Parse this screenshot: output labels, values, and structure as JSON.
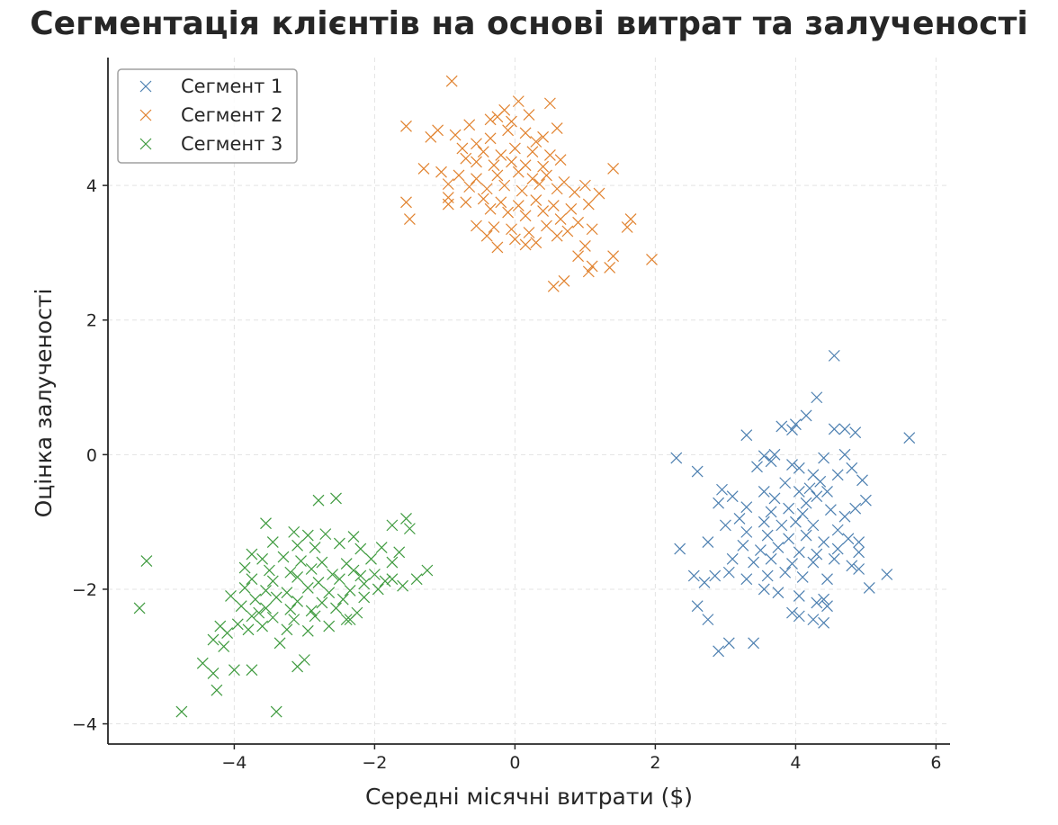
{
  "chart_data": {
    "type": "scatter",
    "title": "Сегментація клієнтів на основі витрат та залученості",
    "xlabel": "Середні місячні витрати ($)",
    "ylabel": "Оцінка залученості",
    "xlim": [
      -5.8,
      6.2
    ],
    "ylim": [
      -4.3,
      5.9
    ],
    "xticks": [
      -4,
      -2,
      0,
      2,
      4,
      6
    ],
    "xtick_labels": [
      "−4",
      "−2",
      "0",
      "2",
      "4",
      "6"
    ],
    "yticks": [
      -4,
      -2,
      0,
      2,
      4
    ],
    "ytick_labels": [
      "−4",
      "−2",
      "0",
      "2",
      "4"
    ],
    "grid": true,
    "legend_position": "top-left",
    "marker": "x",
    "series": [
      {
        "name": "Сегмент 1",
        "color": "#4c7fb0",
        "points": [
          [
            4.55,
            1.47
          ],
          [
            5.62,
            0.25
          ],
          [
            4.3,
            0.85
          ],
          [
            4.15,
            0.58
          ],
          [
            3.3,
            0.29
          ],
          [
            3.8,
            0.42
          ],
          [
            3.95,
            0.37
          ],
          [
            4.55,
            0.38
          ],
          [
            4.7,
            0.38
          ],
          [
            4.85,
            0.33
          ],
          [
            4.0,
            0.45
          ],
          [
            2.3,
            -0.05
          ],
          [
            2.6,
            -0.25
          ],
          [
            3.7,
            0.0
          ],
          [
            3.55,
            -0.02
          ],
          [
            3.95,
            -0.15
          ],
          [
            4.4,
            -0.05
          ],
          [
            4.7,
            0.0
          ],
          [
            3.45,
            -0.18
          ],
          [
            3.65,
            -0.1
          ],
          [
            4.25,
            -0.3
          ],
          [
            4.05,
            -0.2
          ],
          [
            4.6,
            -0.3
          ],
          [
            4.8,
            -0.2
          ],
          [
            4.95,
            -0.38
          ],
          [
            3.85,
            -0.42
          ],
          [
            4.35,
            -0.4
          ],
          [
            4.2,
            -0.5
          ],
          [
            2.95,
            -0.52
          ],
          [
            3.1,
            -0.62
          ],
          [
            3.55,
            -0.55
          ],
          [
            3.7,
            -0.65
          ],
          [
            4.05,
            -0.55
          ],
          [
            4.3,
            -0.62
          ],
          [
            4.15,
            -0.72
          ],
          [
            4.45,
            -0.55
          ],
          [
            5.0,
            -0.68
          ],
          [
            2.9,
            -0.72
          ],
          [
            3.3,
            -0.78
          ],
          [
            3.65,
            -0.85
          ],
          [
            3.9,
            -0.8
          ],
          [
            4.1,
            -0.88
          ],
          [
            4.5,
            -0.82
          ],
          [
            4.7,
            -0.92
          ],
          [
            4.85,
            -0.8
          ],
          [
            3.2,
            -0.95
          ],
          [
            3.55,
            -1.0
          ],
          [
            3.8,
            -1.05
          ],
          [
            4.0,
            -1.0
          ],
          [
            4.25,
            -1.05
          ],
          [
            4.6,
            -1.12
          ],
          [
            3.0,
            -1.05
          ],
          [
            3.3,
            -1.15
          ],
          [
            3.6,
            -1.2
          ],
          [
            3.9,
            -1.25
          ],
          [
            4.15,
            -1.2
          ],
          [
            4.4,
            -1.3
          ],
          [
            4.75,
            -1.25
          ],
          [
            4.9,
            -1.3
          ],
          [
            2.75,
            -1.3
          ],
          [
            3.25,
            -1.35
          ],
          [
            3.5,
            -1.42
          ],
          [
            3.75,
            -1.38
          ],
          [
            4.05,
            -1.45
          ],
          [
            4.3,
            -1.48
          ],
          [
            4.6,
            -1.4
          ],
          [
            4.9,
            -1.45
          ],
          [
            2.35,
            -1.4
          ],
          [
            3.1,
            -1.55
          ],
          [
            3.4,
            -1.6
          ],
          [
            3.65,
            -1.55
          ],
          [
            3.95,
            -1.62
          ],
          [
            4.25,
            -1.6
          ],
          [
            4.55,
            -1.55
          ],
          [
            4.8,
            -1.65
          ],
          [
            2.55,
            -1.8
          ],
          [
            2.85,
            -1.8
          ],
          [
            3.05,
            -1.75
          ],
          [
            3.3,
            -1.85
          ],
          [
            3.6,
            -1.8
          ],
          [
            3.85,
            -1.75
          ],
          [
            4.1,
            -1.82
          ],
          [
            4.45,
            -1.85
          ],
          [
            4.9,
            -1.7
          ],
          [
            5.3,
            -1.78
          ],
          [
            2.7,
            -1.9
          ],
          [
            3.55,
            -2.0
          ],
          [
            3.75,
            -2.05
          ],
          [
            4.05,
            -2.1
          ],
          [
            4.4,
            -2.15
          ],
          [
            5.05,
            -1.98
          ],
          [
            4.3,
            -2.2
          ],
          [
            4.45,
            -2.25
          ],
          [
            2.6,
            -2.25
          ],
          [
            3.95,
            -2.35
          ],
          [
            4.05,
            -2.4
          ],
          [
            4.25,
            -2.45
          ],
          [
            2.75,
            -2.45
          ],
          [
            4.4,
            -2.5
          ],
          [
            3.05,
            -2.8
          ],
          [
            3.4,
            -2.8
          ],
          [
            2.9,
            -2.92
          ]
        ]
      },
      {
        "name": "Сегмент 2",
        "color": "#e1822e",
        "points": [
          [
            -0.9,
            5.55
          ],
          [
            0.5,
            5.22
          ],
          [
            0.05,
            5.25
          ],
          [
            -0.15,
            5.12
          ],
          [
            -0.25,
            5.02
          ],
          [
            -0.35,
            4.98
          ],
          [
            0.2,
            5.05
          ],
          [
            -0.65,
            4.9
          ],
          [
            -0.05,
            4.95
          ],
          [
            0.6,
            4.85
          ],
          [
            -1.55,
            4.88
          ],
          [
            -1.1,
            4.82
          ],
          [
            -0.85,
            4.75
          ],
          [
            -0.55,
            4.62
          ],
          [
            -0.35,
            4.7
          ],
          [
            -0.1,
            4.82
          ],
          [
            0.15,
            4.78
          ],
          [
            0.3,
            4.65
          ],
          [
            0.4,
            4.72
          ],
          [
            -1.2,
            4.72
          ],
          [
            -0.75,
            4.55
          ],
          [
            -0.45,
            4.5
          ],
          [
            -0.2,
            4.45
          ],
          [
            0.0,
            4.55
          ],
          [
            0.25,
            4.5
          ],
          [
            0.5,
            4.45
          ],
          [
            -0.7,
            4.4
          ],
          [
            -0.55,
            4.35
          ],
          [
            -0.3,
            4.3
          ],
          [
            -0.05,
            4.35
          ],
          [
            0.15,
            4.3
          ],
          [
            0.4,
            4.28
          ],
          [
            0.65,
            4.38
          ],
          [
            -1.3,
            4.25
          ],
          [
            -1.05,
            4.2
          ],
          [
            -0.8,
            4.15
          ],
          [
            -0.55,
            4.1
          ],
          [
            -0.25,
            4.15
          ],
          [
            0.05,
            4.2
          ],
          [
            0.25,
            4.1
          ],
          [
            0.45,
            4.15
          ],
          [
            0.7,
            4.05
          ],
          [
            1.0,
            4.0
          ],
          [
            1.4,
            4.25
          ],
          [
            -0.95,
            4.02
          ],
          [
            -0.65,
            3.98
          ],
          [
            -0.4,
            3.95
          ],
          [
            -0.15,
            4.0
          ],
          [
            0.1,
            3.92
          ],
          [
            0.35,
            4.02
          ],
          [
            0.6,
            3.95
          ],
          [
            0.85,
            3.9
          ],
          [
            1.2,
            3.88
          ],
          [
            -0.95,
            3.82
          ],
          [
            -0.7,
            3.75
          ],
          [
            -0.45,
            3.8
          ],
          [
            -0.2,
            3.75
          ],
          [
            0.05,
            3.7
          ],
          [
            0.3,
            3.78
          ],
          [
            0.55,
            3.7
          ],
          [
            0.8,
            3.65
          ],
          [
            1.05,
            3.72
          ],
          [
            -1.55,
            3.75
          ],
          [
            -0.95,
            3.72
          ],
          [
            -0.35,
            3.65
          ],
          [
            -0.1,
            3.6
          ],
          [
            0.15,
            3.55
          ],
          [
            0.4,
            3.62
          ],
          [
            0.65,
            3.5
          ],
          [
            0.9,
            3.45
          ],
          [
            -1.5,
            3.5
          ],
          [
            -0.55,
            3.4
          ],
          [
            -0.3,
            3.38
          ],
          [
            -0.05,
            3.35
          ],
          [
            0.2,
            3.3
          ],
          [
            0.45,
            3.4
          ],
          [
            0.75,
            3.32
          ],
          [
            1.1,
            3.35
          ],
          [
            1.6,
            3.38
          ],
          [
            1.65,
            3.5
          ],
          [
            -0.4,
            3.25
          ],
          [
            0.0,
            3.2
          ],
          [
            0.3,
            3.15
          ],
          [
            0.6,
            3.25
          ],
          [
            1.0,
            3.1
          ],
          [
            -0.25,
            3.08
          ],
          [
            0.15,
            3.12
          ],
          [
            1.4,
            2.95
          ],
          [
            1.95,
            2.9
          ],
          [
            0.9,
            2.95
          ],
          [
            1.1,
            2.8
          ],
          [
            1.05,
            2.72
          ],
          [
            1.35,
            2.78
          ],
          [
            0.7,
            2.58
          ],
          [
            0.55,
            2.5
          ]
        ]
      },
      {
        "name": "Сегмент 3",
        "color": "#3e9a3e",
        "points": [
          [
            -2.55,
            -0.65
          ],
          [
            -2.8,
            -0.68
          ],
          [
            -1.55,
            -0.95
          ],
          [
            -1.5,
            -1.1
          ],
          [
            -1.75,
            -1.05
          ],
          [
            -3.55,
            -1.02
          ],
          [
            -3.15,
            -1.15
          ],
          [
            -2.95,
            -1.2
          ],
          [
            -2.7,
            -1.18
          ],
          [
            -2.3,
            -1.22
          ],
          [
            -3.45,
            -1.3
          ],
          [
            -3.1,
            -1.35
          ],
          [
            -2.85,
            -1.38
          ],
          [
            -2.5,
            -1.32
          ],
          [
            -2.2,
            -1.4
          ],
          [
            -1.9,
            -1.38
          ],
          [
            -1.65,
            -1.45
          ],
          [
            -3.75,
            -1.48
          ],
          [
            -3.6,
            -1.55
          ],
          [
            -3.3,
            -1.52
          ],
          [
            -3.05,
            -1.58
          ],
          [
            -2.75,
            -1.6
          ],
          [
            -2.4,
            -1.62
          ],
          [
            -2.05,
            -1.55
          ],
          [
            -1.75,
            -1.6
          ],
          [
            -3.85,
            -1.68
          ],
          [
            -3.5,
            -1.72
          ],
          [
            -3.2,
            -1.75
          ],
          [
            -2.9,
            -1.7
          ],
          [
            -2.6,
            -1.78
          ],
          [
            -2.3,
            -1.72
          ],
          [
            -2.0,
            -1.78
          ],
          [
            -1.25,
            -1.72
          ],
          [
            -3.75,
            -1.85
          ],
          [
            -3.45,
            -1.88
          ],
          [
            -3.1,
            -1.82
          ],
          [
            -2.8,
            -1.9
          ],
          [
            -2.5,
            -1.85
          ],
          [
            -2.15,
            -1.92
          ],
          [
            -1.85,
            -1.88
          ],
          [
            -1.4,
            -1.85
          ],
          [
            -3.85,
            -1.98
          ],
          [
            -3.55,
            -2.02
          ],
          [
            -3.25,
            -2.05
          ],
          [
            -2.95,
            -1.98
          ],
          [
            -2.65,
            -2.05
          ],
          [
            -2.35,
            -2.02
          ],
          [
            -1.95,
            -2.0
          ],
          [
            -1.6,
            -1.95
          ],
          [
            -4.05,
            -2.1
          ],
          [
            -3.7,
            -2.15
          ],
          [
            -3.4,
            -2.12
          ],
          [
            -3.1,
            -2.18
          ],
          [
            -2.75,
            -2.2
          ],
          [
            -2.45,
            -2.15
          ],
          [
            -2.15,
            -2.12
          ],
          [
            -3.9,
            -2.25
          ],
          [
            -3.55,
            -2.28
          ],
          [
            -3.2,
            -2.3
          ],
          [
            -2.9,
            -2.32
          ],
          [
            -2.55,
            -2.28
          ],
          [
            -2.25,
            -2.35
          ],
          [
            -3.75,
            -2.4
          ],
          [
            -3.45,
            -2.42
          ],
          [
            -3.15,
            -2.45
          ],
          [
            -2.85,
            -2.4
          ],
          [
            -2.4,
            -2.45
          ],
          [
            -3.95,
            -2.52
          ],
          [
            -3.6,
            -2.55
          ],
          [
            -3.25,
            -2.6
          ],
          [
            -2.95,
            -2.62
          ],
          [
            -2.65,
            -2.55
          ],
          [
            -4.2,
            -2.55
          ],
          [
            -3.8,
            -2.6
          ],
          [
            -4.1,
            -2.65
          ],
          [
            -4.3,
            -2.75
          ],
          [
            -4.15,
            -2.85
          ],
          [
            -3.35,
            -2.8
          ],
          [
            -4.45,
            -3.1
          ],
          [
            -4.3,
            -3.25
          ],
          [
            -3.1,
            -3.15
          ],
          [
            -3.0,
            -3.05
          ],
          [
            -3.75,
            -3.2
          ],
          [
            -4.0,
            -3.2
          ],
          [
            -4.25,
            -3.5
          ],
          [
            -5.25,
            -1.58
          ],
          [
            -5.35,
            -2.28
          ],
          [
            -4.75,
            -3.82
          ],
          [
            -3.4,
            -3.82
          ],
          [
            -2.2,
            -1.8
          ],
          [
            -2.35,
            -2.45
          ],
          [
            -3.65,
            -2.35
          ],
          [
            -1.75,
            -1.85
          ]
        ]
      }
    ]
  }
}
